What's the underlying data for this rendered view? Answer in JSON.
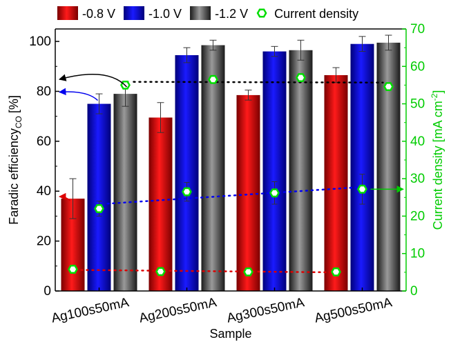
{
  "chart_data": {
    "type": "bar",
    "categories": [
      "Ag100s50mA",
      "Ag200s50mA",
      "Ag300s50mA",
      "Ag500s50mA"
    ],
    "xlabel": "Sample",
    "ylabel": "Faradic efficiency",
    "ylabel_sub": "CO",
    "ylabel_unit": "[%]",
    "y2label": "Current density [mA cm",
    "y2label_sup": "-2",
    "y2label_end": "]",
    "ylim": [
      0,
      105
    ],
    "y2lim": [
      0,
      70
    ],
    "yticks": [
      0,
      20,
      40,
      60,
      80,
      100
    ],
    "y2ticks": [
      0,
      10,
      20,
      30,
      40,
      50,
      60,
      70
    ],
    "series": [
      {
        "name": "-0.8 V",
        "color": "#dd0000",
        "values": [
          37,
          69.5,
          78.5,
          86.5
        ],
        "errors": [
          8,
          6,
          2,
          3
        ]
      },
      {
        "name": "-1.0 V",
        "color": "#0000ee",
        "values": [
          75,
          94.5,
          96,
          99
        ],
        "errors": [
          4,
          3,
          2,
          3
        ]
      },
      {
        "name": "-1.2 V",
        "color": "#555555",
        "values": [
          79,
          98.5,
          96.5,
          99.5
        ],
        "errors": [
          5,
          2,
          4,
          3
        ]
      }
    ],
    "current_density": {
      "name": "Current density",
      "color": "#00dd00",
      "groups": [
        {
          "color": "#dd0000",
          "x_series": 0,
          "values": [
            5.8,
            5.2,
            5.1,
            5.1
          ],
          "errors": [
            0.5,
            0.4,
            0.4,
            0.3
          ]
        },
        {
          "color": "#0000ee",
          "x_series": 1,
          "values": [
            22,
            26.5,
            26.2,
            27.2
          ],
          "errors": [
            2,
            2.5,
            3,
            4
          ]
        },
        {
          "color": "#000000",
          "x_series": 2,
          "values": [
            55,
            56.5,
            57,
            54.6
          ],
          "errors": [
            1,
            0.5,
            1,
            0.5
          ]
        }
      ]
    },
    "legend_position": "top"
  }
}
